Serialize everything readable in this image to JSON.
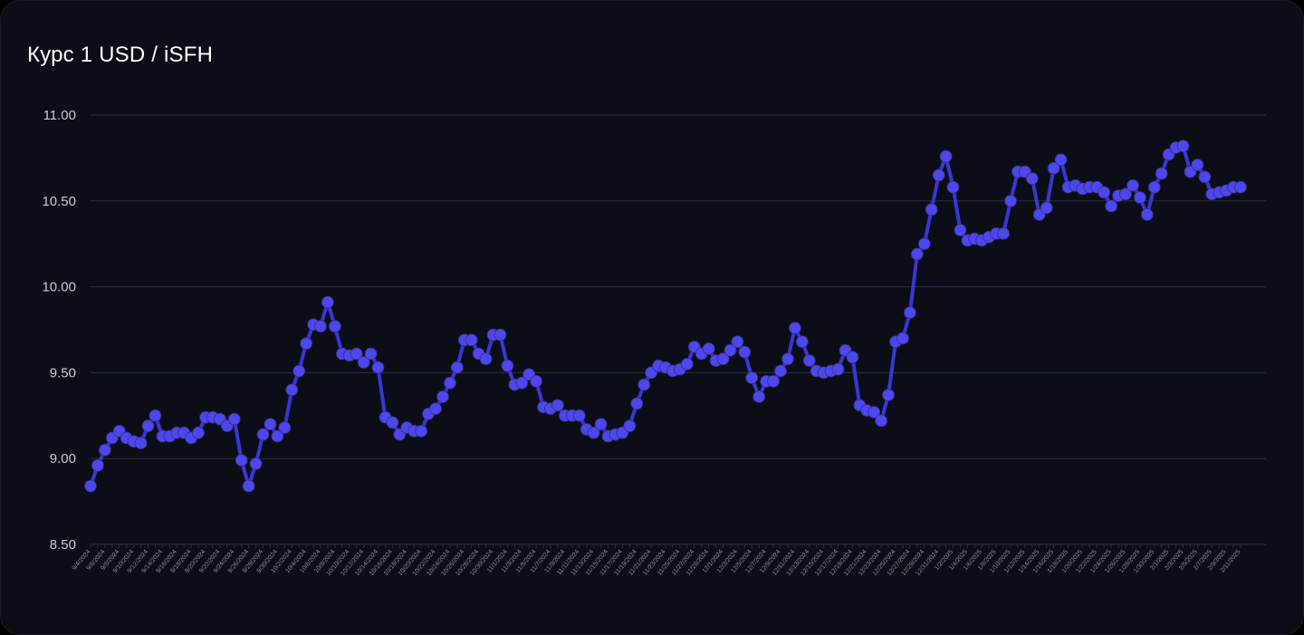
{
  "title": "Курс 1 USD / iSFH",
  "colors": {
    "background": "#0c0e17",
    "grid": "#2b2f3c",
    "line": "#3a36d6",
    "marker": "#4b48ee",
    "title": "#ffffff",
    "tick_label": "#c9cbd2"
  },
  "chart_data": {
    "type": "line",
    "title": "Курс 1 USD / iSFH",
    "xlabel": "",
    "ylabel": "",
    "ylim": [
      8.5,
      11.0
    ],
    "y_ticks": [
      "8.50",
      "9.00",
      "9.50",
      "10.00",
      "10.50",
      "11.00"
    ],
    "grid": true,
    "legend": "none",
    "x_tick_labels": [
      "9/4/2024",
      "9/6/2024",
      "9/8/2024",
      "9/10/2024",
      "9/12/2024",
      "9/14/2024",
      "9/16/2024",
      "9/18/2024",
      "9/20/2024",
      "9/22/2024",
      "9/24/2024",
      "9/26/2024",
      "9/28/2024",
      "9/30/2024",
      "10/2/2024",
      "10/4/2024",
      "10/6/2024",
      "10/8/2024",
      "10/10/2024",
      "10/12/2024",
      "10/14/2024",
      "10/16/2024",
      "10/18/2024",
      "10/20/2024",
      "10/22/2024",
      "10/24/2024",
      "10/26/2024",
      "10/28/2024",
      "10/30/2024",
      "11/1/2024",
      "11/3/2024",
      "11/5/2024",
      "11/7/2024",
      "11/9/2024",
      "11/11/2024",
      "11/13/2024",
      "11/15/2024",
      "11/17/2024",
      "11/19/2024",
      "11/21/2024",
      "11/23/2024",
      "11/25/2024",
      "11/27/2024",
      "11/29/2024",
      "12/1/2024",
      "12/3/2024",
      "12/5/2024",
      "12/7/2024",
      "12/9/2024",
      "12/11/2024",
      "12/13/2024",
      "12/15/2024",
      "12/17/2024",
      "12/19/2024",
      "12/21/2024",
      "12/23/2024",
      "12/25/2024",
      "12/27/2024",
      "12/29/2024",
      "12/31/2024",
      "1/2/2025",
      "1/4/2025",
      "1/6/2025",
      "1/8/2025",
      "1/10/2025",
      "1/12/2025",
      "1/14/2025",
      "1/16/2025",
      "1/18/2025",
      "1/20/2025",
      "1/22/2025",
      "1/24/2025",
      "1/26/2025",
      "1/28/2025",
      "1/30/2025",
      "2/1/2025",
      "2/3/2025",
      "2/5/2025",
      "2/7/2025",
      "2/9/2025",
      "2/11/2025"
    ],
    "series": [
      {
        "values": [
          8.84,
          8.96,
          9.05,
          9.12,
          9.16,
          9.12,
          9.1,
          9.09,
          9.19,
          9.25,
          9.13,
          9.13,
          9.15,
          9.15,
          9.12,
          9.15,
          9.24,
          9.24,
          9.23,
          9.19,
          9.23,
          8.99,
          8.84,
          8.97,
          9.14,
          9.2,
          9.13,
          9.18,
          9.4,
          9.51,
          9.67,
          9.78,
          9.77,
          9.91,
          9.77,
          9.61,
          9.6,
          9.61,
          9.56,
          9.61,
          9.53,
          9.24,
          9.21,
          9.14,
          9.18,
          9.16,
          9.16,
          9.26,
          9.29,
          9.36,
          9.44,
          9.53,
          9.69,
          9.69,
          9.61,
          9.58,
          9.72,
          9.72,
          9.54,
          9.43,
          9.44,
          9.49,
          9.45,
          9.3,
          9.29,
          9.31,
          9.25,
          9.25,
          9.25,
          9.17,
          9.15,
          9.2,
          9.13,
          9.14,
          9.15,
          9.19,
          9.32,
          9.43,
          9.5,
          9.54,
          9.53,
          9.51,
          9.52,
          9.55,
          9.65,
          9.61,
          9.64,
          9.57,
          9.58,
          9.63,
          9.68,
          9.62,
          9.47,
          9.36,
          9.45,
          9.45,
          9.51,
          9.58,
          9.76,
          9.68,
          9.57,
          9.51,
          9.5,
          9.51,
          9.52,
          9.63,
          9.59,
          9.31,
          9.28,
          9.27,
          9.22,
          9.37,
          9.68,
          9.7,
          9.85,
          10.19,
          10.25,
          10.45,
          10.65,
          10.76,
          10.58,
          10.33,
          10.27,
          10.28,
          10.27,
          10.29,
          10.31,
          10.31,
          10.5,
          10.67,
          10.67,
          10.63,
          10.42,
          10.46,
          10.69,
          10.74,
          10.58,
          10.59,
          10.57,
          10.58,
          10.58,
          10.55,
          10.47,
          10.53,
          10.54,
          10.59,
          10.52,
          10.42,
          10.58,
          10.66,
          10.77,
          10.81,
          10.82,
          10.67,
          10.71,
          10.64,
          10.54,
          10.55,
          10.56,
          10.58,
          10.58
        ]
      }
    ]
  }
}
